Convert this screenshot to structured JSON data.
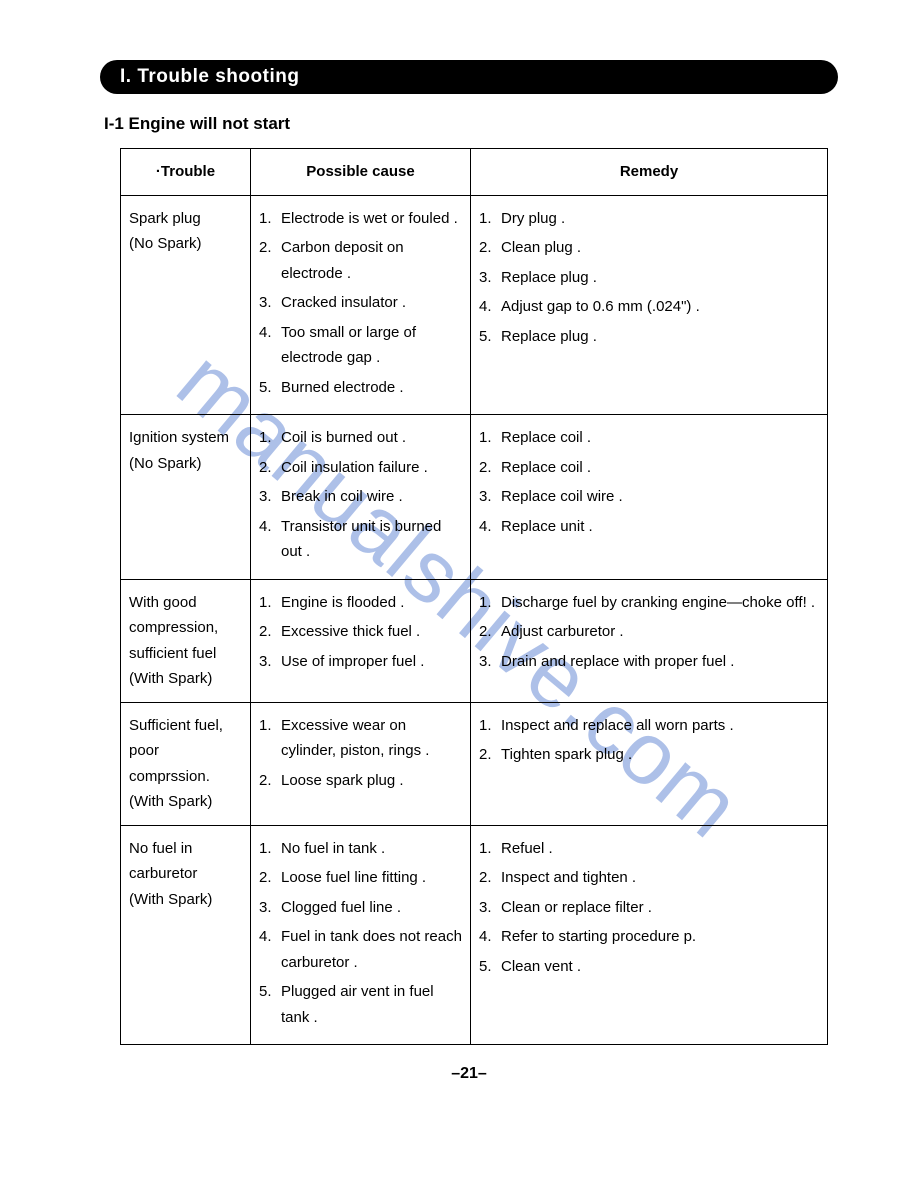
{
  "section_header": "I.   Trouble shooting",
  "subsection_title": "I-1  Engine will not start",
  "watermark_text": "manualshive.com",
  "page_number": "–21–",
  "columns": {
    "trouble": "·Trouble",
    "cause": "Possible cause",
    "remedy": "Remedy"
  },
  "rows": [
    {
      "trouble": "Spark plug\n(No Spark)",
      "causes": [
        "Electrode is wet or fouled .",
        "Carbon deposit on electrode .",
        "Cracked insulator .",
        "Too small or large of electrode gap .",
        "Burned electrode ."
      ],
      "remedies": [
        "Dry plug .",
        "Clean plug .",
        "Replace plug .",
        "Adjust gap to 0.6 mm (.024\") .",
        "Replace plug ."
      ]
    },
    {
      "trouble": "Ignition system\n(No Spark)",
      "causes": [
        "Coil is burned out .",
        "Coil insulation failure .",
        "Break in coil wire .",
        "Transistor unit is burned out ."
      ],
      "remedies": [
        "Replace coil .",
        "Replace coil .",
        "Replace coil wire .",
        "Replace unit ."
      ]
    },
    {
      "trouble": "With good compression, sufficient fuel\n(With Spark)",
      "causes": [
        "Engine is flooded .",
        "Excessive thick fuel .",
        "Use of improper fuel ."
      ],
      "remedies": [
        "Discharge fuel by cranking engine—choke off! .",
        "Adjust carburetor .",
        "Drain and replace with proper fuel ."
      ]
    },
    {
      "trouble": "Sufficient fuel, poor comprssion.\n(With Spark)",
      "causes": [
        "Excessive wear on cylinder, piston, rings .",
        "Loose spark plug ."
      ],
      "remedies": [
        "Inspect and replace all worn parts .",
        "Tighten spark plug ."
      ]
    },
    {
      "trouble": "No fuel in carburetor\n(With Spark)",
      "causes": [
        "No fuel in tank .",
        "Loose fuel line fitting .",
        "Clogged fuel line .",
        "Fuel in tank does not reach carburetor .",
        "Plugged air vent in fuel tank ."
      ],
      "remedies": [
        "Refuel .",
        "Inspect and tighten .",
        "Clean or replace filter .",
        "Refer to starting procedure p.",
        "Clean vent ."
      ]
    }
  ]
}
